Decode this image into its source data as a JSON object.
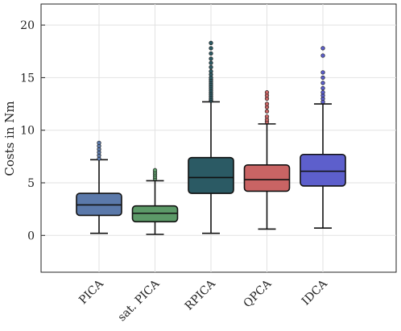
{
  "chart_data": {
    "type": "box",
    "ylabel": "Costs in Nm",
    "xlabel": "",
    "ylim": [
      -3.5,
      22
    ],
    "yticks": [
      0,
      5,
      10,
      15,
      20
    ],
    "grid": true,
    "categories": [
      "PICA",
      "sat. PICA",
      "RPICA",
      "QPCA",
      "IDCA"
    ],
    "series": [
      {
        "category": "PICA",
        "color": "#5b79aa",
        "whisker_low": 0.2,
        "q1": 1.9,
        "median": 2.9,
        "q3": 4.0,
        "whisker_high": 7.2,
        "outliers": [
          7.3,
          7.6,
          7.9,
          8.2,
          8.5,
          8.8
        ]
      },
      {
        "category": "sat. PICA",
        "color": "#5c9a68",
        "whisker_low": 0.1,
        "q1": 1.3,
        "median": 2.1,
        "q3": 2.8,
        "whisker_high": 5.2,
        "outliers": [
          5.4,
          5.6,
          5.8,
          6.0,
          6.2
        ]
      },
      {
        "category": "RPICA",
        "color": "#2b5a64",
        "whisker_low": 0.2,
        "q1": 4.0,
        "median": 5.5,
        "q3": 7.4,
        "whisker_high": 12.7,
        "outliers": [
          12.8,
          12.9,
          13.0,
          13.2,
          13.4,
          13.6,
          13.8,
          14.0,
          14.2,
          14.4,
          14.6,
          14.8,
          15.0,
          15.3,
          15.6,
          16.0,
          16.4,
          16.8,
          17.3,
          17.8,
          18.3
        ]
      },
      {
        "category": "QPCA",
        "color": "#c96464",
        "whisker_low": 0.6,
        "q1": 4.2,
        "median": 5.3,
        "q3": 6.7,
        "whisker_high": 10.6,
        "outliers": [
          10.8,
          11.0,
          11.3,
          11.8,
          12.2,
          12.5,
          13.0,
          13.3,
          13.6
        ]
      },
      {
        "category": "IDCA",
        "color": "#5d5fcc",
        "whisker_low": 0.7,
        "q1": 4.7,
        "median": 6.1,
        "q3": 7.7,
        "whisker_high": 12.5,
        "outliers": [
          12.7,
          13.0,
          13.3,
          13.6,
          14.0,
          14.5,
          15.0,
          15.5,
          17.1,
          17.8
        ]
      }
    ]
  }
}
